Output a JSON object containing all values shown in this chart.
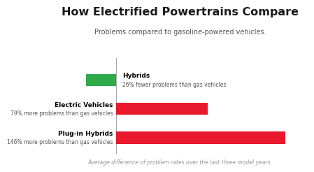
{
  "title": "How Electrified Powertrains Compare",
  "subtitle": "Problems compared to gasoline-powered vehicles.",
  "footer": "Average difference of problem rates over the last three model years.",
  "categories": [
    "Hybrids",
    "Electric Vehicles",
    "Plug-in Hybrids"
  ],
  "values": [
    -26,
    79,
    146
  ],
  "bar_colors": [
    "#2eaa4a",
    "#e8192c",
    "#e8192c"
  ],
  "label_bold_lines": [
    "Hybrids",
    "Electric Vehicles",
    "Plug-in Hybrids"
  ],
  "label_normal_lines": [
    "26% fewer problems than gas vehicles",
    "79% more problems than gas vehicles",
    "146% more problems than gas vehicles"
  ],
  "xlim": [
    -55,
    165
  ],
  "background_color": "#ffffff",
  "title_fontsize": 11.5,
  "subtitle_fontsize": 7,
  "footer_fontsize": 5.5,
  "bar_height": 0.42
}
